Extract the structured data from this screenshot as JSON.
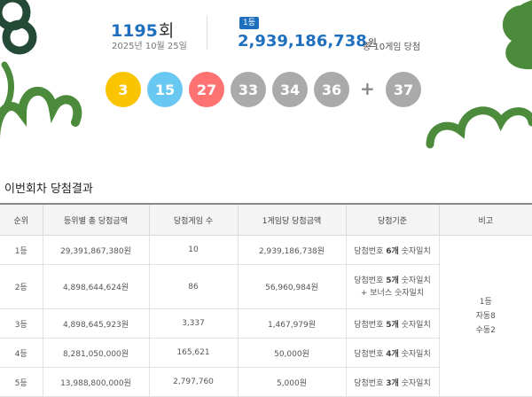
{
  "draw": {
    "round_number": "1195",
    "round_suffix": "회",
    "date": "2025년 10월 25일",
    "rank_badge": "1등",
    "first_prize_amount": "2,939,186,738",
    "first_prize_unit": "원",
    "winner_note": "총 10게임 당첨"
  },
  "balls": [
    {
      "number": "3",
      "color": "#fbc400"
    },
    {
      "number": "15",
      "color": "#69c8f2"
    },
    {
      "number": "27",
      "color": "#ff7272"
    },
    {
      "number": "33",
      "color": "#aaaaaa"
    },
    {
      "number": "34",
      "color": "#aaaaaa"
    },
    {
      "number": "36",
      "color": "#aaaaaa"
    }
  ],
  "plus_sign": "+",
  "bonus_ball": {
    "number": "37",
    "color": "#aaaaaa"
  },
  "section_title": "이번회차 당첨결과",
  "table": {
    "headers": [
      "순위",
      "등위별 총 당첨금액",
      "당첨게임 수",
      "1게임당 당첨금액",
      "당첨기준",
      "비고"
    ],
    "rows": [
      {
        "rank": "1등",
        "total": "29,391,867,380원",
        "games": "10",
        "per_game": "2,939,186,738원",
        "criteria_pre": "당첨번호 ",
        "criteria_bold": "6개",
        "criteria_post": " 숫자일치",
        "criteria_extra": ""
      },
      {
        "rank": "2등",
        "total": "4,898,644,624원",
        "games": "86",
        "per_game": "56,960,984원",
        "criteria_pre": "당첨번호 ",
        "criteria_bold": "5개",
        "criteria_post": " 숫자일치",
        "criteria_extra": "+ 보너스 숫자일치"
      },
      {
        "rank": "3등",
        "total": "4,898,645,923원",
        "games": "3,337",
        "per_game": "1,467,979원",
        "criteria_pre": "당첨번호 ",
        "criteria_bold": "5개",
        "criteria_post": " 숫자일치",
        "criteria_extra": ""
      },
      {
        "rank": "4등",
        "total": "8,281,050,000원",
        "games": "165,621",
        "per_game": "50,000원",
        "criteria_pre": "당첨번호 ",
        "criteria_bold": "4개",
        "criteria_post": " 숫자일치",
        "criteria_extra": ""
      },
      {
        "rank": "5등",
        "total": "13,988,800,000원",
        "games": "2,797,760",
        "per_game": "5,000원",
        "criteria_pre": "당첨번호 ",
        "criteria_bold": "3개",
        "criteria_post": " 숫자일치",
        "criteria_extra": ""
      }
    ],
    "note_lines": [
      "1등",
      "자동8",
      "수동2"
    ]
  },
  "colors": {
    "accent": "#1f6fbf",
    "deco_green": "#4c8a3c",
    "deco_dark": "#244a37"
  }
}
